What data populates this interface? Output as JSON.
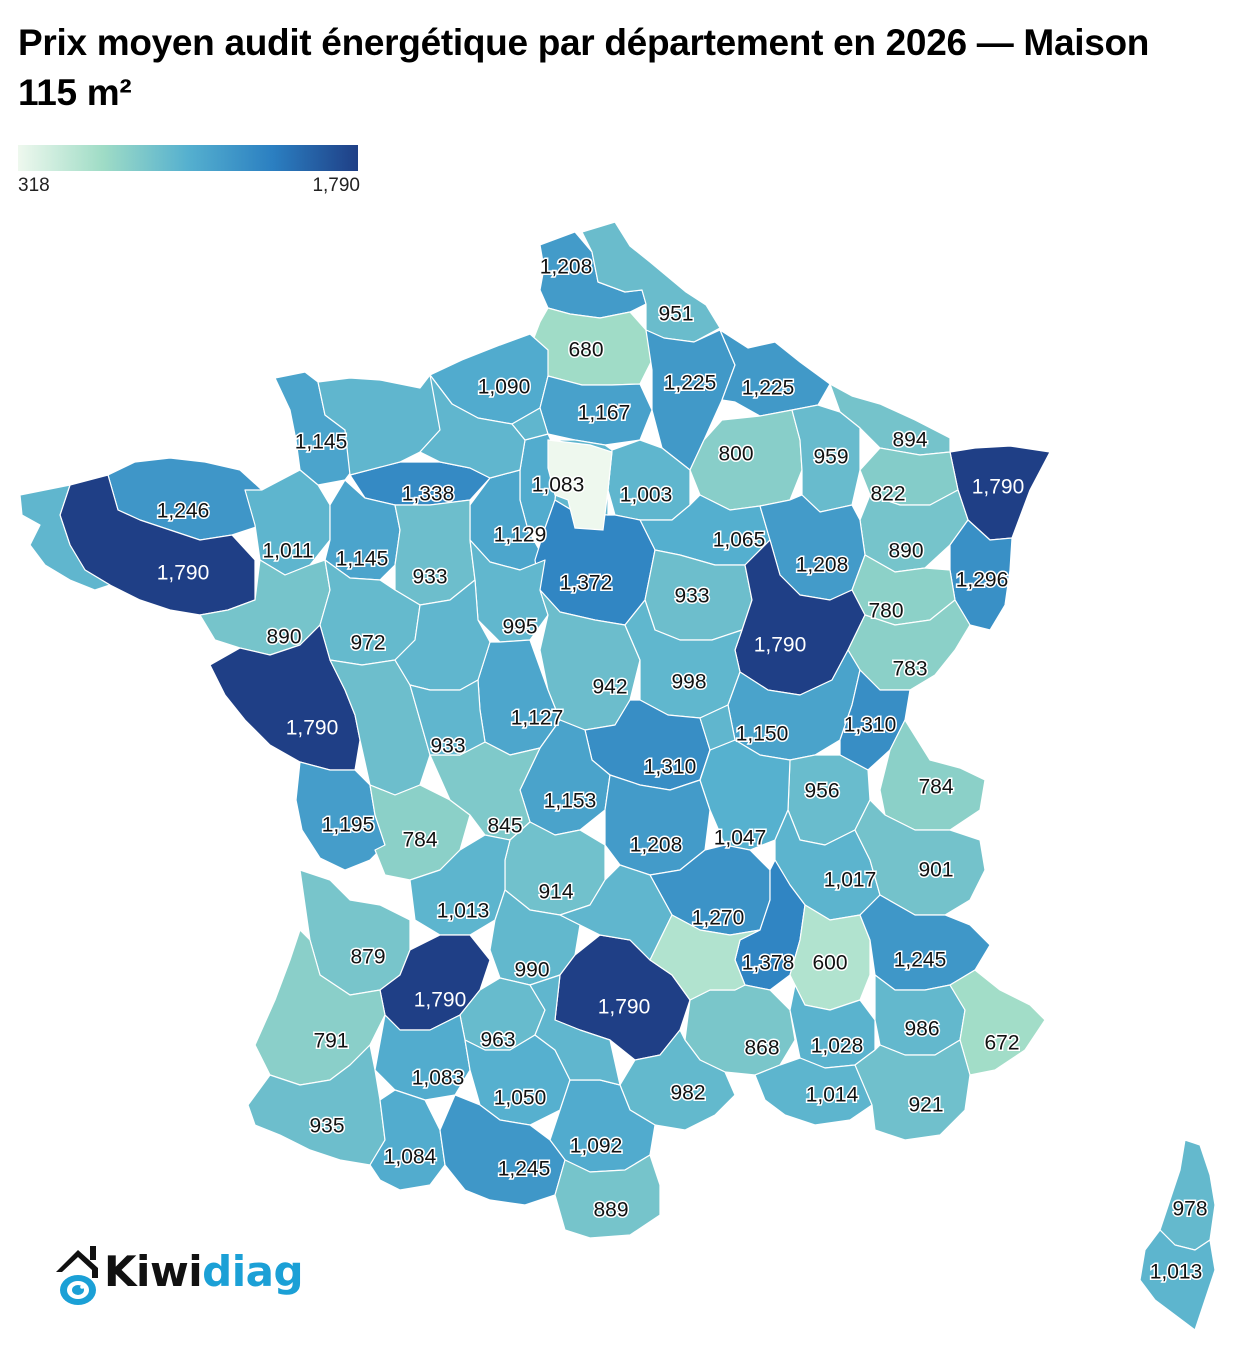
{
  "title": "Prix moyen audit énergétique par département en 2026 — Maison 115 m²",
  "legend": {
    "min_label": "318",
    "max_label": "1,790",
    "min_value": 318,
    "max_value": 1790,
    "colors": [
      "#eef8ee",
      "#9fdcc6",
      "#55b0cf",
      "#2b7fc1",
      "#1f3f86"
    ]
  },
  "logo": {
    "text_dark": "Kiwi",
    "text_accent": "diag",
    "accent_color": "#1ba0d6",
    "icon": "house-kiwi-logo-icon"
  },
  "map_data": {
    "type": "choropleth",
    "region": "France (départements)",
    "labeled_values": [
      1208,
      951,
      680,
      1090,
      1225,
      1225,
      1167,
      1145,
      894,
      800,
      959,
      1790,
      1083,
      1003,
      1246,
      1338,
      822,
      1129,
      1065,
      1011,
      1145,
      1790,
      890,
      933,
      1372,
      1208,
      1296,
      933,
      780,
      995,
      890,
      972,
      1790,
      942,
      998,
      783,
      1127,
      1790,
      933,
      1150,
      1310,
      1310,
      1153,
      956,
      784,
      1195,
      784,
      845,
      1208,
      1047,
      1017,
      901,
      914,
      1013,
      1270,
      879,
      990,
      1378,
      600,
      1245,
      1790,
      1790,
      791,
      963,
      868,
      1028,
      986,
      672,
      1083,
      1050,
      982,
      1014,
      921,
      935,
      1092,
      1084,
      1245,
      889,
      978,
      1013
    ],
    "regions": [
      {
        "name": "Nord",
        "value": 1208
      },
      {
        "name": "Pas-de-Calais area",
        "value": 951
      },
      {
        "name": "Somme",
        "value": 680
      },
      {
        "name": "Seine-Maritime",
        "value": 1090
      },
      {
        "name": "Aisne",
        "value": 1225
      },
      {
        "name": "Ardennes",
        "value": 1225
      },
      {
        "name": "Oise",
        "value": 1167
      },
      {
        "name": "Manche",
        "value": 1145
      },
      {
        "name": "Moselle",
        "value": 894
      },
      {
        "name": "Marne",
        "value": 800
      },
      {
        "name": "Meuse",
        "value": 959
      },
      {
        "name": "Bas-Rhin",
        "value": 1790
      },
      {
        "name": "Yvelines",
        "value": 1083
      },
      {
        "name": "Seine-et-Marne",
        "value": 1003
      },
      {
        "name": "Côtes-d'Armor",
        "value": 1246
      },
      {
        "name": "Orne",
        "value": 1338
      },
      {
        "name": "Meurthe-et-Moselle",
        "value": 822
      },
      {
        "name": "Eure-et-Loir",
        "value": 1129
      },
      {
        "name": "Aube",
        "value": 1065
      },
      {
        "name": "Ille-et-Vilaine",
        "value": 1011
      },
      {
        "name": "Mayenne",
        "value": 1145
      },
      {
        "name": "Morbihan",
        "value": 1790
      },
      {
        "name": "Vosges",
        "value": 890
      },
      {
        "name": "Sarthe",
        "value": 933
      },
      {
        "name": "Loiret",
        "value": 1372
      },
      {
        "name": "Haute-Marne",
        "value": 1208
      },
      {
        "name": "Haut-Rhin",
        "value": 1296
      },
      {
        "name": "Yonne",
        "value": 933
      },
      {
        "name": "Haute-Saône",
        "value": 780
      },
      {
        "name": "Loir-et-Cher",
        "value": 995
      },
      {
        "name": "Loire-Atlantique",
        "value": 890
      },
      {
        "name": "Maine-et-Loire",
        "value": 972
      },
      {
        "name": "Côte-d'Or",
        "value": 1790
      },
      {
        "name": "Cher",
        "value": 942
      },
      {
        "name": "Nièvre",
        "value": 998
      },
      {
        "name": "Doubs",
        "value": 783
      },
      {
        "name": "Indre",
        "value": 1127
      },
      {
        "name": "Vendée",
        "value": 1790
      },
      {
        "name": "Deux-Sèvres",
        "value": 933
      },
      {
        "name": "Saône-et-Loire",
        "value": 1150
      },
      {
        "name": "Jura",
        "value": 1310
      },
      {
        "name": "Allier",
        "value": 1310
      },
      {
        "name": "Creuse",
        "value": 1153
      },
      {
        "name": "Ain",
        "value": 956
      },
      {
        "name": "Haute-Savoie",
        "value": 784
      },
      {
        "name": "Charente-Maritime",
        "value": 1195
      },
      {
        "name": "Charente",
        "value": 784
      },
      {
        "name": "Haute-Vienne",
        "value": 845
      },
      {
        "name": "Puy-de-Dôme",
        "value": 1208
      },
      {
        "name": "Rhône",
        "value": 1047
      },
      {
        "name": "Isère",
        "value": 1017
      },
      {
        "name": "Savoie",
        "value": 901
      },
      {
        "name": "Corrèze",
        "value": 914
      },
      {
        "name": "Dordogne",
        "value": 1013
      },
      {
        "name": "Haute-Loire",
        "value": 1270
      },
      {
        "name": "Gironde",
        "value": 879
      },
      {
        "name": "Lot",
        "value": 990
      },
      {
        "name": "Ardèche",
        "value": 1378
      },
      {
        "name": "Drôme",
        "value": 600
      },
      {
        "name": "Hautes-Alpes",
        "value": 1245
      },
      {
        "name": "Lot-et-Garonne",
        "value": 1790
      },
      {
        "name": "Aveyron",
        "value": 1790
      },
      {
        "name": "Landes",
        "value": 791
      },
      {
        "name": "Tarn-et-Garonne",
        "value": 963
      },
      {
        "name": "Gard",
        "value": 868
      },
      {
        "name": "Vaucluse",
        "value": 1028
      },
      {
        "name": "Alpes-de-Haute-Provence",
        "value": 986
      },
      {
        "name": "Alpes-Maritimes",
        "value": 672
      },
      {
        "name": "Gers",
        "value": 1083
      },
      {
        "name": "Haute-Garonne",
        "value": 1050
      },
      {
        "name": "Hérault",
        "value": 982
      },
      {
        "name": "Bouches-du-Rhône",
        "value": 1014
      },
      {
        "name": "Var",
        "value": 921
      },
      {
        "name": "Pyrénées-Atlantiques",
        "value": 935
      },
      {
        "name": "Aude",
        "value": 1092
      },
      {
        "name": "Hautes-Pyrénées",
        "value": 1084
      },
      {
        "name": "Ariège",
        "value": 1245
      },
      {
        "name": "Pyrénées-Orientales",
        "value": 889
      },
      {
        "name": "Haute-Corse",
        "value": 978
      },
      {
        "name": "Corse-du-Sud",
        "value": 1013
      },
      {
        "name": "Finistère"
      },
      {
        "name": "Calvados"
      },
      {
        "name": "Eure"
      },
      {
        "name": "Val-d'Oise"
      },
      {
        "name": "Indre-et-Loire"
      },
      {
        "name": "Vienne"
      },
      {
        "name": "Loire"
      },
      {
        "name": "Cantal"
      },
      {
        "name": "Lozère",
        "value": 600
      },
      {
        "name": "Tarn"
      },
      {
        "name": "Paris region"
      }
    ]
  }
}
